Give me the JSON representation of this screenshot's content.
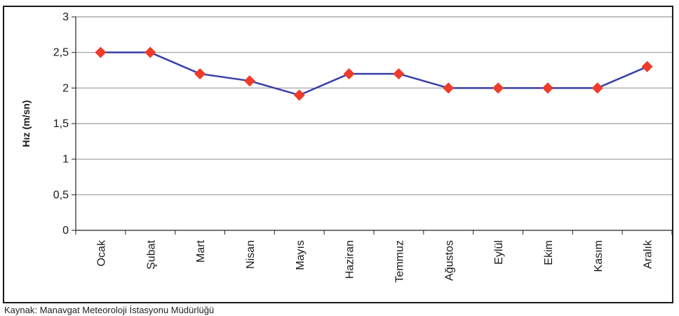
{
  "chart_data": {
    "type": "line",
    "title": "",
    "xlabel": "",
    "ylabel": "Hız (m/sn)",
    "ylim": [
      0,
      3
    ],
    "yticks": [
      "0",
      "0,5",
      "1",
      "1,5",
      "2",
      "2,5",
      "3"
    ],
    "categories": [
      "Ocak",
      "Şubat",
      "Mart",
      "Nisan",
      "Mayıs",
      "Haziran",
      "Temmuz",
      "Ağustos",
      "Eylül",
      "Ekim",
      "Kasım",
      "Aralık"
    ],
    "series": [
      {
        "name": "",
        "values": [
          2.5,
          2.5,
          2.2,
          2.1,
          1.9,
          2.2,
          2.2,
          2.0,
          2.0,
          2.0,
          2.0,
          2.3
        ]
      }
    ],
    "grid": true,
    "legend": "none"
  },
  "colors": {
    "line": "#3a3fa6",
    "marker": "#ee3b2a",
    "grid": "#9a9a9a",
    "axis": "#222222"
  },
  "source_note": "Kaynak: Manavgat Meteoroloji İstasyonu Müdürlüğü"
}
